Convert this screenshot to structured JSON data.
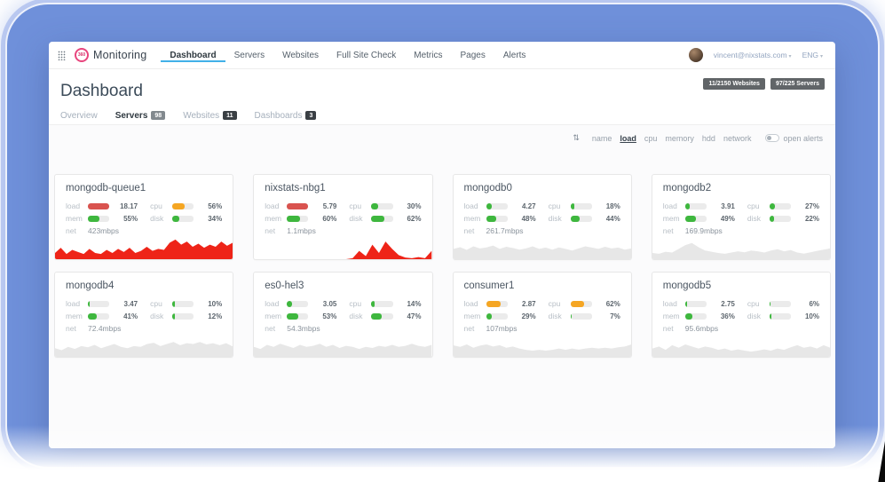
{
  "navbar": {
    "logo_badge": "360",
    "logo_text": "Monitoring",
    "items": [
      {
        "label": "Dashboard",
        "active": true
      },
      {
        "label": "Servers",
        "active": false
      },
      {
        "label": "Websites",
        "active": false
      },
      {
        "label": "Full Site Check",
        "active": false
      },
      {
        "label": "Metrics",
        "active": false
      },
      {
        "label": "Pages",
        "active": false
      },
      {
        "label": "Alerts",
        "active": false
      }
    ],
    "user_email": "vincent@nixstats.com",
    "email_caret": "▾",
    "language": "ENG",
    "language_caret": "▾"
  },
  "header": {
    "title": "Dashboard",
    "status_badges": [
      "11/2150 Websites",
      "97/225 Servers"
    ]
  },
  "tabs": [
    {
      "label": "Overview",
      "count": "",
      "active": false
    },
    {
      "label": "Servers",
      "count": "98",
      "active": true
    },
    {
      "label": "Websites",
      "count": "11",
      "active": false
    },
    {
      "label": "Dashboards",
      "count": "3",
      "active": false
    }
  ],
  "sortbar": {
    "sort_icon": "⇅",
    "options": [
      "name",
      "load",
      "cpu",
      "memory",
      "hdd",
      "network"
    ],
    "active_option": "load",
    "toggle_label": "open alerts"
  },
  "metric_labels": {
    "load": "load",
    "cpu": "cpu",
    "mem": "mem",
    "disk": "disk",
    "net": "net"
  },
  "colors": {
    "green": "#3eb73e",
    "orange": "#f5a623",
    "red": "#d9534f",
    "spark_red": "#ee2418",
    "spark_gray": "#e7e7e7",
    "accent_blue": "#41b0e8"
  },
  "servers": [
    {
      "name": "mongodb-queue1",
      "load": {
        "value": "18.17",
        "pct": 100,
        "color": "red"
      },
      "cpu": {
        "value": "56%",
        "pct": 56,
        "color": "orange"
      },
      "mem": {
        "value": "55%",
        "pct": 55,
        "color": "green"
      },
      "disk": {
        "value": "34%",
        "pct": 34,
        "color": "green"
      },
      "net": "423mbps",
      "spark": {
        "color": "spark_red",
        "points": [
          0.3,
          0.55,
          0.25,
          0.45,
          0.35,
          0.25,
          0.5,
          0.3,
          0.25,
          0.45,
          0.3,
          0.5,
          0.35,
          0.55,
          0.3,
          0.4,
          0.6,
          0.4,
          0.5,
          0.45,
          0.8,
          0.95,
          0.7,
          0.85,
          0.6,
          0.75,
          0.55,
          0.7,
          0.6,
          0.85,
          0.65,
          0.8
        ]
      }
    },
    {
      "name": "nixstats-nbg1",
      "load": {
        "value": "5.79",
        "pct": 100,
        "color": "red"
      },
      "cpu": {
        "value": "30%",
        "pct": 30,
        "color": "green"
      },
      "mem": {
        "value": "60%",
        "pct": 60,
        "color": "green"
      },
      "disk": {
        "value": "62%",
        "pct": 62,
        "color": "green"
      },
      "net": "1.1mbps",
      "spark": {
        "color": "spark_red",
        "points": [
          0,
          0,
          0,
          0,
          0,
          0,
          0,
          0,
          0,
          0,
          0,
          0,
          0,
          0,
          0,
          0.05,
          0.4,
          0.15,
          0.7,
          0.3,
          0.85,
          0.5,
          0.2,
          0.08,
          0.05,
          0.1,
          0.05,
          0.4
        ]
      }
    },
    {
      "name": "mongodb0",
      "load": {
        "value": "4.27",
        "pct": 28,
        "color": "green"
      },
      "cpu": {
        "value": "18%",
        "pct": 18,
        "color": "green"
      },
      "mem": {
        "value": "48%",
        "pct": 48,
        "color": "green"
      },
      "disk": {
        "value": "44%",
        "pct": 44,
        "color": "green"
      },
      "net": "261.7mbps",
      "spark": {
        "color": "spark_gray",
        "points": [
          0.5,
          0.58,
          0.45,
          0.62,
          0.52,
          0.57,
          0.66,
          0.5,
          0.6,
          0.54,
          0.46,
          0.52,
          0.62,
          0.5,
          0.56,
          0.46,
          0.57,
          0.5,
          0.42,
          0.52,
          0.62,
          0.56,
          0.5,
          0.6,
          0.52,
          0.56,
          0.46,
          0.52
        ]
      }
    },
    {
      "name": "mongodb2",
      "load": {
        "value": "3.91",
        "pct": 22,
        "color": "green"
      },
      "cpu": {
        "value": "27%",
        "pct": 27,
        "color": "green"
      },
      "mem": {
        "value": "49%",
        "pct": 49,
        "color": "green"
      },
      "disk": {
        "value": "22%",
        "pct": 22,
        "color": "green"
      },
      "net": "169.9mbps",
      "spark": {
        "color": "spark_gray",
        "points": [
          0.3,
          0.26,
          0.36,
          0.32,
          0.5,
          0.68,
          0.78,
          0.58,
          0.42,
          0.36,
          0.3,
          0.26,
          0.32,
          0.38,
          0.33,
          0.42,
          0.38,
          0.32,
          0.42,
          0.48,
          0.38,
          0.44,
          0.32,
          0.27,
          0.33,
          0.4,
          0.46,
          0.52
        ]
      }
    },
    {
      "name": "mongodb4",
      "load": {
        "value": "3.47",
        "pct": 10,
        "color": "green"
      },
      "cpu": {
        "value": "10%",
        "pct": 10,
        "color": "green"
      },
      "mem": {
        "value": "41%",
        "pct": 41,
        "color": "green"
      },
      "disk": {
        "value": "12%",
        "pct": 12,
        "color": "green"
      },
      "net": "72.4mbps",
      "spark": {
        "color": "spark_gray",
        "points": [
          0.42,
          0.32,
          0.48,
          0.38,
          0.52,
          0.46,
          0.58,
          0.42,
          0.52,
          0.62,
          0.48,
          0.42,
          0.52,
          0.48,
          0.62,
          0.68,
          0.52,
          0.62,
          0.72,
          0.56,
          0.66,
          0.62,
          0.72,
          0.6,
          0.66,
          0.56,
          0.66,
          0.5
        ]
      }
    },
    {
      "name": "es0-hel3",
      "load": {
        "value": "3.05",
        "pct": 25,
        "color": "green"
      },
      "cpu": {
        "value": "14%",
        "pct": 14,
        "color": "green"
      },
      "mem": {
        "value": "53%",
        "pct": 53,
        "color": "green"
      },
      "disk": {
        "value": "47%",
        "pct": 47,
        "color": "green"
      },
      "net": "54.3mbps",
      "spark": {
        "color": "spark_gray",
        "points": [
          0.48,
          0.38,
          0.58,
          0.48,
          0.63,
          0.53,
          0.43,
          0.58,
          0.48,
          0.53,
          0.63,
          0.48,
          0.58,
          0.43,
          0.53,
          0.48,
          0.38,
          0.48,
          0.43,
          0.53,
          0.48,
          0.58,
          0.48,
          0.53,
          0.63,
          0.53,
          0.48,
          0.58
        ]
      }
    },
    {
      "name": "consumer1",
      "load": {
        "value": "2.87",
        "pct": 70,
        "color": "orange"
      },
      "cpu": {
        "value": "62%",
        "pct": 62,
        "color": "orange"
      },
      "mem": {
        "value": "29%",
        "pct": 29,
        "color": "green"
      },
      "disk": {
        "value": "7%",
        "pct": 7,
        "color": "green"
      },
      "net": "107mbps",
      "spark": {
        "color": "spark_gray",
        "points": [
          0.55,
          0.48,
          0.6,
          0.44,
          0.54,
          0.6,
          0.5,
          0.56,
          0.44,
          0.5,
          0.4,
          0.34,
          0.3,
          0.34,
          0.3,
          0.34,
          0.4,
          0.34,
          0.4,
          0.35,
          0.4,
          0.44,
          0.4,
          0.44,
          0.4,
          0.46,
          0.5,
          0.6
        ]
      }
    },
    {
      "name": "mongodb5",
      "load": {
        "value": "2.75",
        "pct": 8,
        "color": "green"
      },
      "cpu": {
        "value": "6%",
        "pct": 6,
        "color": "green"
      },
      "mem": {
        "value": "36%",
        "pct": 36,
        "color": "green"
      },
      "disk": {
        "value": "10%",
        "pct": 10,
        "color": "green"
      },
      "net": "95.6mbps",
      "spark": {
        "color": "spark_gray",
        "points": [
          0.4,
          0.5,
          0.34,
          0.56,
          0.44,
          0.6,
          0.5,
          0.4,
          0.5,
          0.44,
          0.34,
          0.4,
          0.3,
          0.36,
          0.3,
          0.25,
          0.3,
          0.36,
          0.3,
          0.4,
          0.34,
          0.46,
          0.56,
          0.44,
          0.5,
          0.4,
          0.56,
          0.44
        ]
      }
    }
  ]
}
